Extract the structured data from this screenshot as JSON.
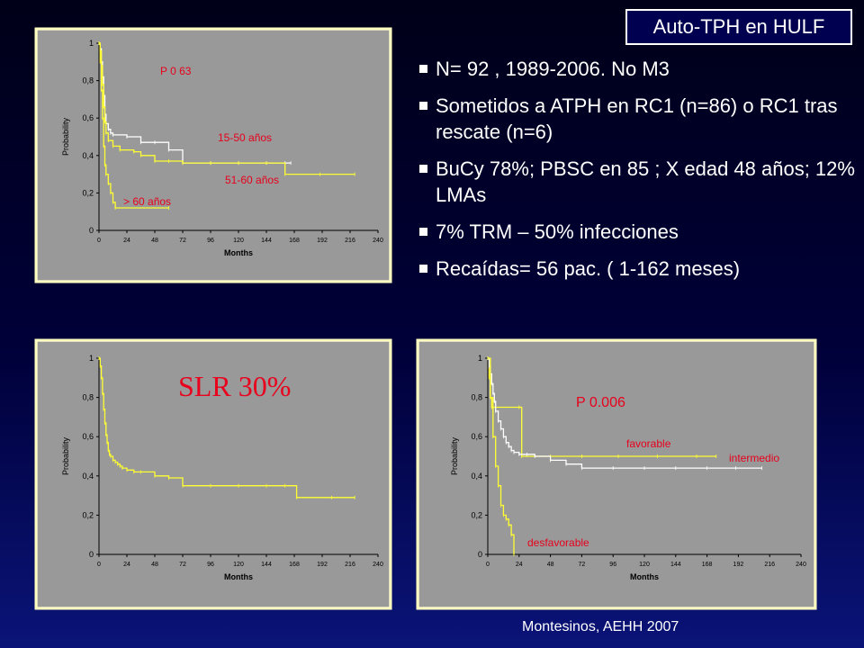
{
  "header": {
    "title": "Auto-TPH en HULF"
  },
  "bullets": [
    "N= 92 , 1989-2006. No M3",
    "Sometidos a ATPH en RC1 (n=86) o RC1 tras rescate (n=6)",
    "BuCy 78%; PBSC en 85 ; X edad 48 años; 12%  LMAs",
    "7% TRM – 50% infecciones",
    "Recaídas= 56 pac. ( 1-162 meses)"
  ],
  "credit": "Montesinos, AEHH 2007",
  "chart_data": [
    {
      "type": "line",
      "xlabel": "Months",
      "ylabel": "Probability",
      "xlim": [
        0,
        240
      ],
      "ylim": [
        0,
        1
      ],
      "x_ticks": [
        "0",
        "24",
        "48",
        "72",
        "96",
        "120",
        "144",
        "168",
        "192",
        "216",
        "240"
      ],
      "y_ticks": [
        "0",
        "0,2",
        "0,4",
        "0,6",
        "0,8",
        "1"
      ],
      "annotations": [
        "P 0 63",
        "15-50 años",
        "51-60 años",
        "> 60 años"
      ],
      "series": [
        {
          "name": "15-50 años",
          "color": "#ffffff",
          "x": [
            0,
            1,
            2,
            3,
            4,
            5,
            6,
            8,
            10,
            12,
            24,
            36,
            48,
            60,
            72,
            96,
            120,
            144,
            160,
            165
          ],
          "y": [
            1,
            0.97,
            0.9,
            0.82,
            0.72,
            0.62,
            0.57,
            0.54,
            0.52,
            0.51,
            0.5,
            0.47,
            0.47,
            0.43,
            0.36,
            0.36,
            0.36,
            0.36,
            0.36,
            0.36
          ]
        },
        {
          "name": "51-60 años",
          "color": "#ffff33",
          "x": [
            0,
            1,
            2,
            3,
            4,
            5,
            6,
            8,
            12,
            18,
            30,
            36,
            48,
            60,
            72,
            96,
            120,
            144,
            160,
            190,
            220
          ],
          "y": [
            1,
            0.96,
            0.88,
            0.78,
            0.66,
            0.58,
            0.52,
            0.48,
            0.45,
            0.43,
            0.42,
            0.4,
            0.37,
            0.37,
            0.36,
            0.36,
            0.36,
            0.36,
            0.3,
            0.3,
            0.3
          ]
        },
        {
          "name": "> 60 años",
          "color": "#ffff33",
          "x": [
            0,
            1,
            2,
            3,
            4,
            5,
            6,
            8,
            10,
            12,
            14,
            60
          ],
          "y": [
            1,
            0.9,
            0.75,
            0.6,
            0.45,
            0.35,
            0.3,
            0.25,
            0.2,
            0.15,
            0.12,
            0.12
          ]
        }
      ]
    },
    {
      "type": "line",
      "xlabel": "Months",
      "ylabel": "Probability",
      "xlim": [
        0,
        240
      ],
      "ylim": [
        0,
        1
      ],
      "x_ticks": [
        "0",
        "24",
        "48",
        "72",
        "96",
        "120",
        "144",
        "168",
        "192",
        "216",
        "240"
      ],
      "y_ticks": [
        "0",
        "0,2",
        "0,4",
        "0,6",
        "0,8",
        "1"
      ],
      "annotations": [
        "SLR 30%"
      ],
      "series": [
        {
          "name": "",
          "color": "#ffff33",
          "x": [
            0,
            1,
            2,
            3,
            4,
            5,
            6,
            7,
            8,
            9,
            10,
            12,
            14,
            16,
            18,
            20,
            24,
            30,
            36,
            48,
            60,
            72,
            96,
            120,
            144,
            160,
            170,
            200,
            220
          ],
          "y": [
            1,
            0.96,
            0.9,
            0.82,
            0.74,
            0.67,
            0.61,
            0.57,
            0.53,
            0.51,
            0.5,
            0.48,
            0.47,
            0.46,
            0.45,
            0.44,
            0.43,
            0.42,
            0.42,
            0.4,
            0.39,
            0.35,
            0.35,
            0.35,
            0.35,
            0.35,
            0.29,
            0.29,
            0.29
          ]
        }
      ]
    },
    {
      "type": "line",
      "xlabel": "Months",
      "ylabel": "Probability",
      "xlim": [
        0,
        240
      ],
      "ylim": [
        0,
        1
      ],
      "x_ticks": [
        "0",
        "24",
        "48",
        "72",
        "96",
        "120",
        "144",
        "168",
        "192",
        "216",
        "240"
      ],
      "y_ticks": [
        "0",
        "0,2",
        "0,4",
        "0,6",
        "0,8",
        "1"
      ],
      "annotations": [
        "P 0.006",
        "favorable",
        "intermedio",
        "desfavorable"
      ],
      "series": [
        {
          "name": "favorable",
          "color": "#ffff33",
          "x": [
            0,
            1,
            2,
            3,
            24,
            26,
            48,
            72,
            100,
            130,
            160,
            175
          ],
          "y": [
            1,
            0.9,
            0.8,
            0.75,
            0.75,
            0.5,
            0.5,
            0.5,
            0.5,
            0.5,
            0.5,
            0.5
          ]
        },
        {
          "name": "intermedio",
          "color": "#ffffff",
          "x": [
            0,
            1,
            2,
            3,
            4,
            5,
            6,
            8,
            10,
            12,
            14,
            16,
            18,
            20,
            24,
            30,
            36,
            48,
            60,
            72,
            96,
            120,
            144,
            168,
            190,
            210
          ],
          "y": [
            1,
            0.96,
            0.92,
            0.87,
            0.82,
            0.78,
            0.73,
            0.68,
            0.64,
            0.6,
            0.57,
            0.55,
            0.53,
            0.52,
            0.51,
            0.51,
            0.5,
            0.48,
            0.46,
            0.44,
            0.44,
            0.44,
            0.44,
            0.44,
            0.44,
            0.44
          ]
        },
        {
          "name": "desfavorable",
          "color": "#ffff33",
          "x": [
            0,
            2,
            4,
            6,
            8,
            10,
            12,
            14,
            16,
            18,
            20
          ],
          "y": [
            1,
            0.8,
            0.6,
            0.45,
            0.35,
            0.25,
            0.2,
            0.18,
            0.15,
            0.1,
            0
          ]
        }
      ]
    }
  ]
}
